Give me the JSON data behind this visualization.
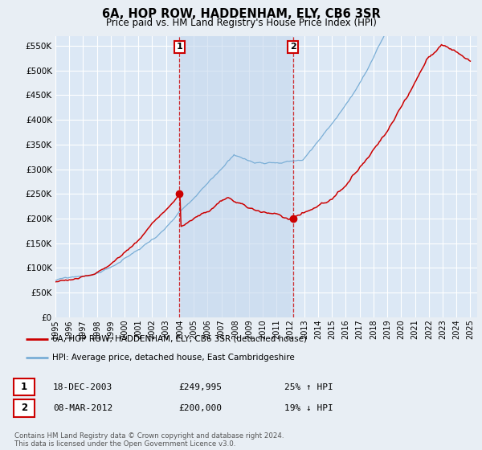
{
  "title": "6A, HOP ROW, HADDENHAM, ELY, CB6 3SR",
  "subtitle": "Price paid vs. HM Land Registry's House Price Index (HPI)",
  "ytick_values": [
    0,
    50000,
    100000,
    150000,
    200000,
    250000,
    300000,
    350000,
    400000,
    450000,
    500000,
    550000
  ],
  "ylim": [
    0,
    570000
  ],
  "background_color": "#e8eef4",
  "plot_bg_color": "#dce8f5",
  "grid_color": "#ffffff",
  "red_line_color": "#cc0000",
  "blue_line_color": "#7aaed6",
  "shade_color": "#c5d8ee",
  "vline_color": "#cc0000",
  "sale1_year": 2003.96,
  "sale1_value": 249995,
  "sale2_year": 2012.17,
  "sale2_value": 200000,
  "legend_red": "6A, HOP ROW, HADDENHAM, ELY, CB6 3SR (detached house)",
  "legend_blue": "HPI: Average price, detached house, East Cambridgeshire",
  "note1_date": "18-DEC-2003",
  "note1_price": "£249,995",
  "note1_pct": "25% ↑ HPI",
  "note2_date": "08-MAR-2012",
  "note2_price": "£200,000",
  "note2_pct": "19% ↓ HPI",
  "footer": "Contains HM Land Registry data © Crown copyright and database right 2024.\nThis data is licensed under the Open Government Licence v3.0.",
  "xstart_year": 1995,
  "xend_year": 2025
}
